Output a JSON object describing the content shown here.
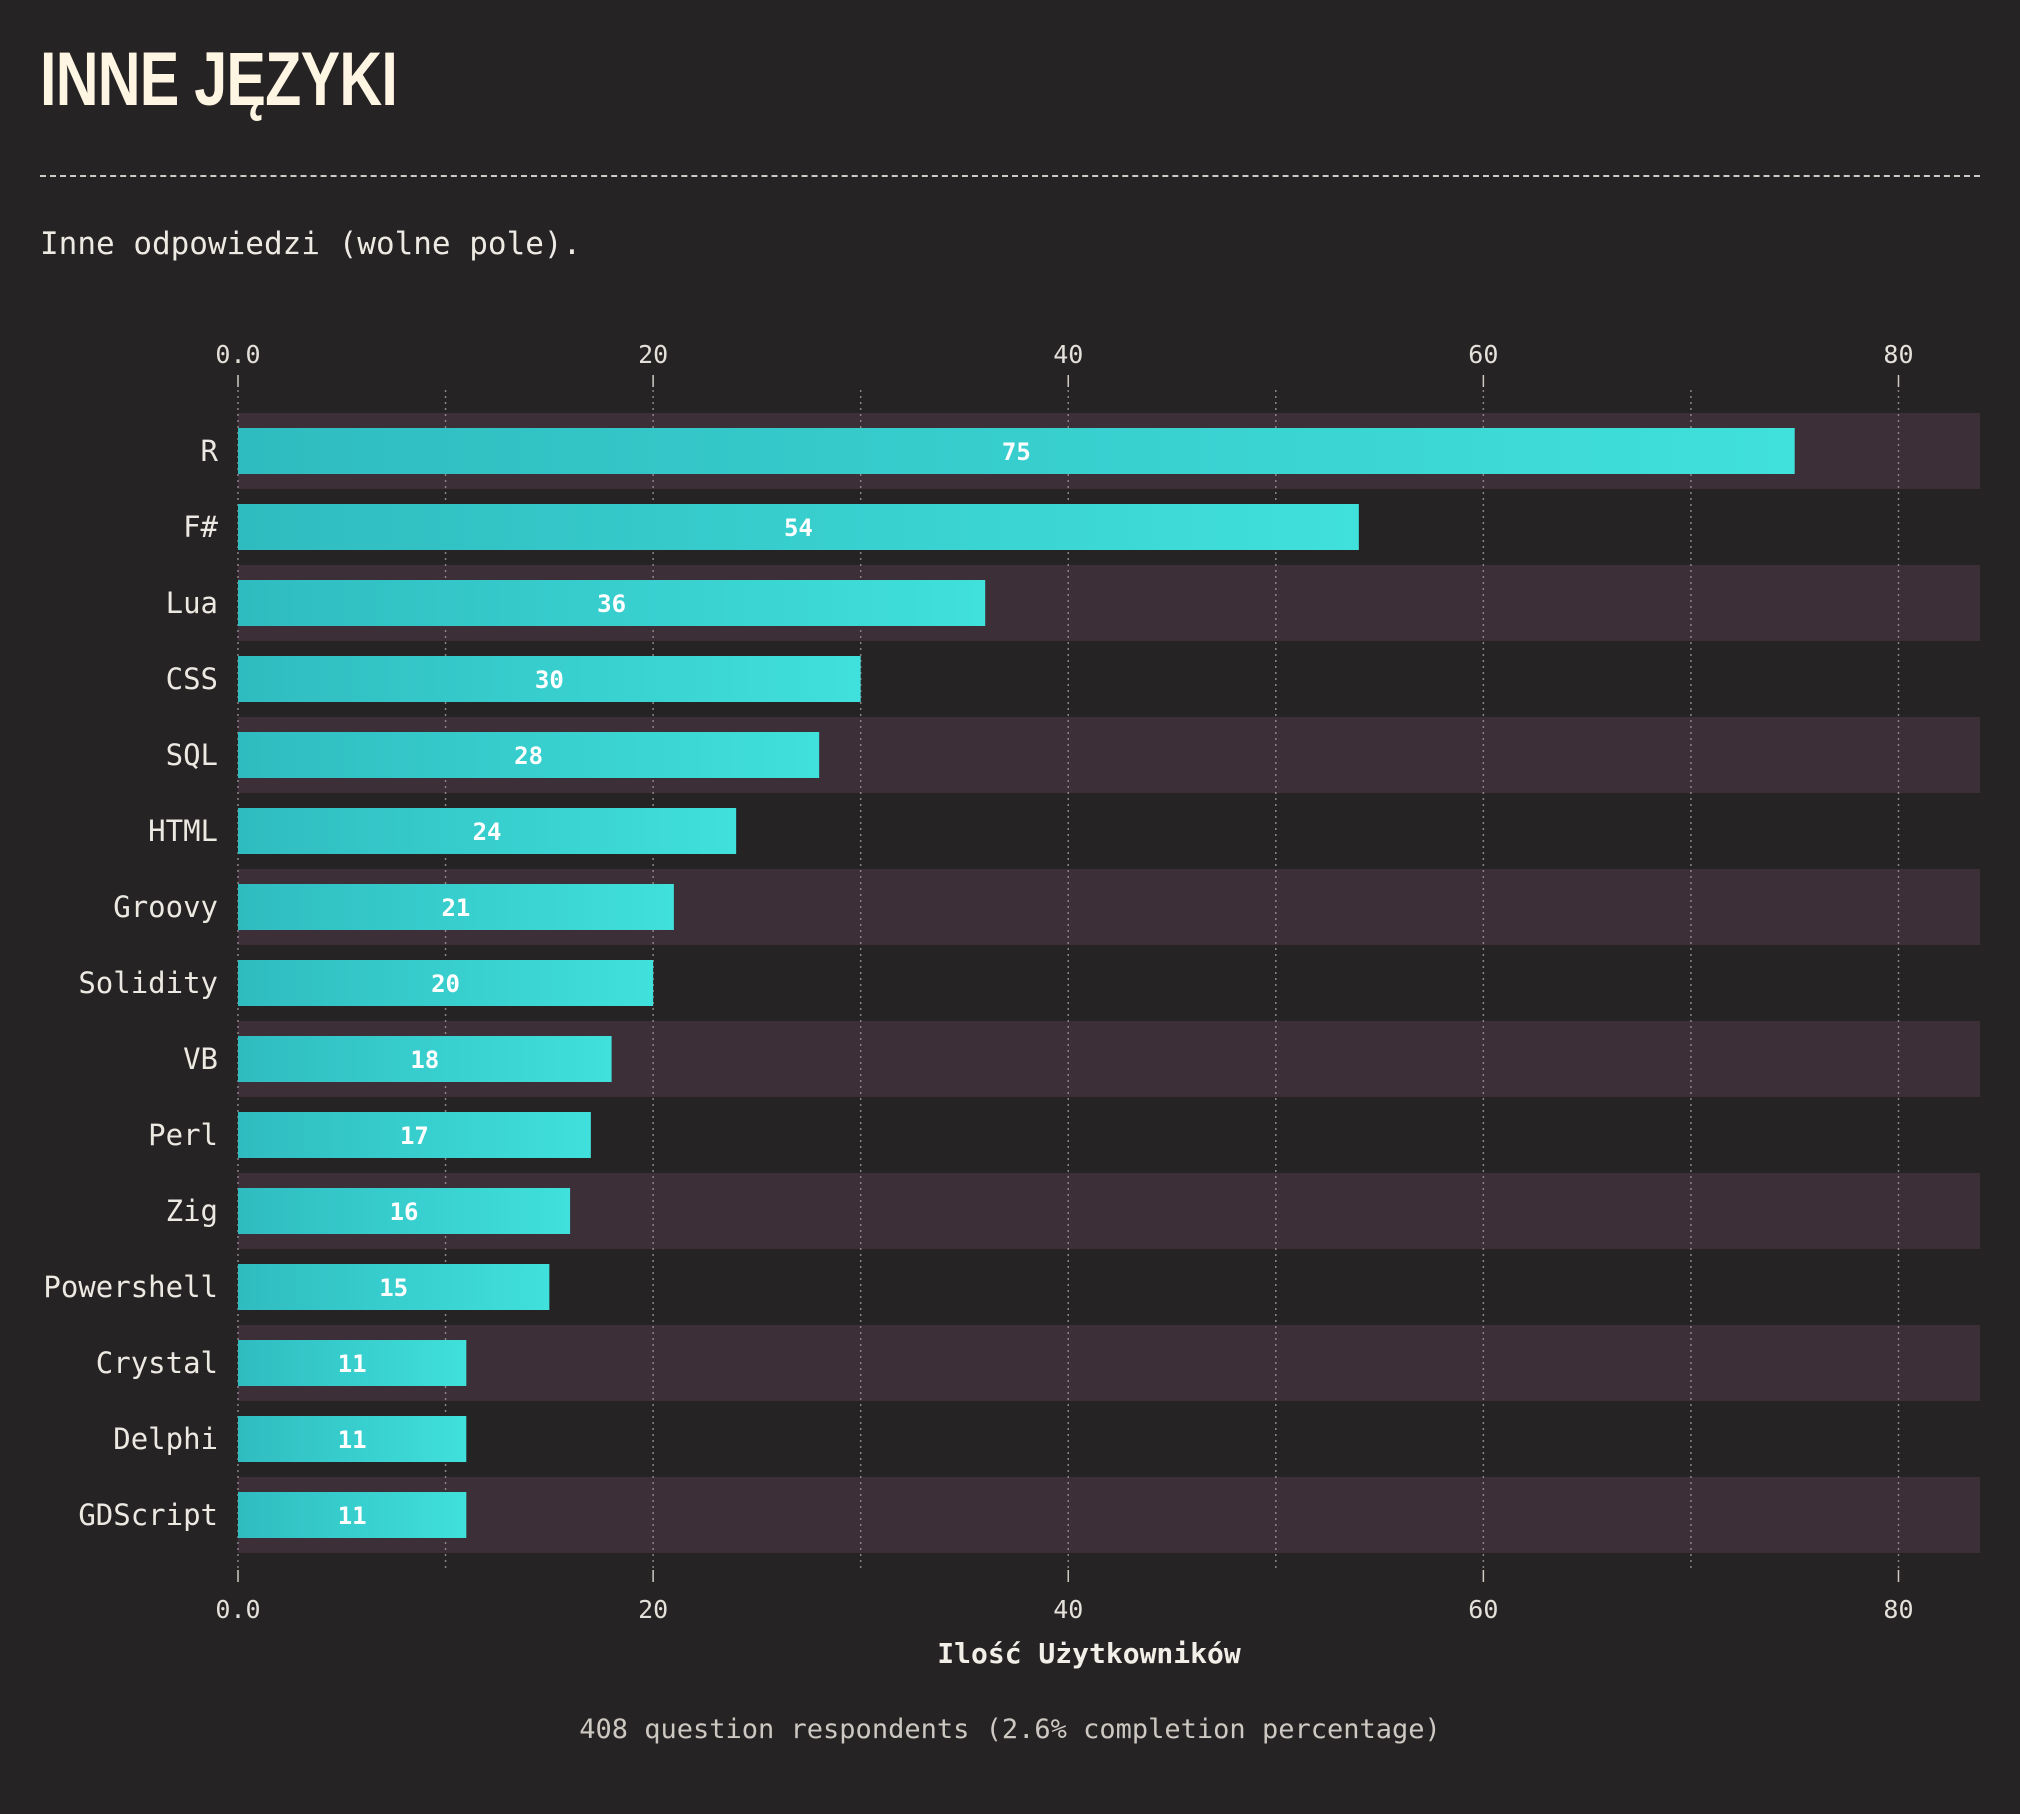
{
  "header": {
    "title": "INNE JĘZYKI",
    "subtitle": "Inne odpowiedzi (wolne pole)."
  },
  "footer": {
    "note": "408 question respondents (2.6% completion percentage)"
  },
  "colors": {
    "background": "#262324",
    "band": "#3d2f37",
    "bar_start": "#2fbcc0",
    "bar_end": "#40e0dc",
    "title": "#fff5e3"
  },
  "chart_data": {
    "type": "bar",
    "orientation": "horizontal",
    "categories": [
      "R",
      "F#",
      "Lua",
      "CSS",
      "SQL",
      "HTML",
      "Groovy",
      "Solidity",
      "VB",
      "Perl",
      "Zig",
      "Powershell",
      "Crystal",
      "Delphi",
      "GDScript"
    ],
    "values": [
      75,
      54,
      36,
      30,
      28,
      24,
      21,
      20,
      18,
      17,
      16,
      15,
      11,
      11,
      11
    ],
    "xlabel": "Ilość Użytkowników",
    "xlim": [
      0,
      82
    ],
    "x_ticks": [
      {
        "value": 0,
        "label": "0.0"
      },
      {
        "value": 20,
        "label": "20"
      },
      {
        "value": 40,
        "label": "40"
      },
      {
        "value": 60,
        "label": "60"
      },
      {
        "value": 80,
        "label": "80"
      }
    ],
    "minor_gridlines": [
      10,
      30,
      50,
      70
    ],
    "grid": true,
    "ticks_top_and_bottom": true,
    "data_labels": true
  }
}
